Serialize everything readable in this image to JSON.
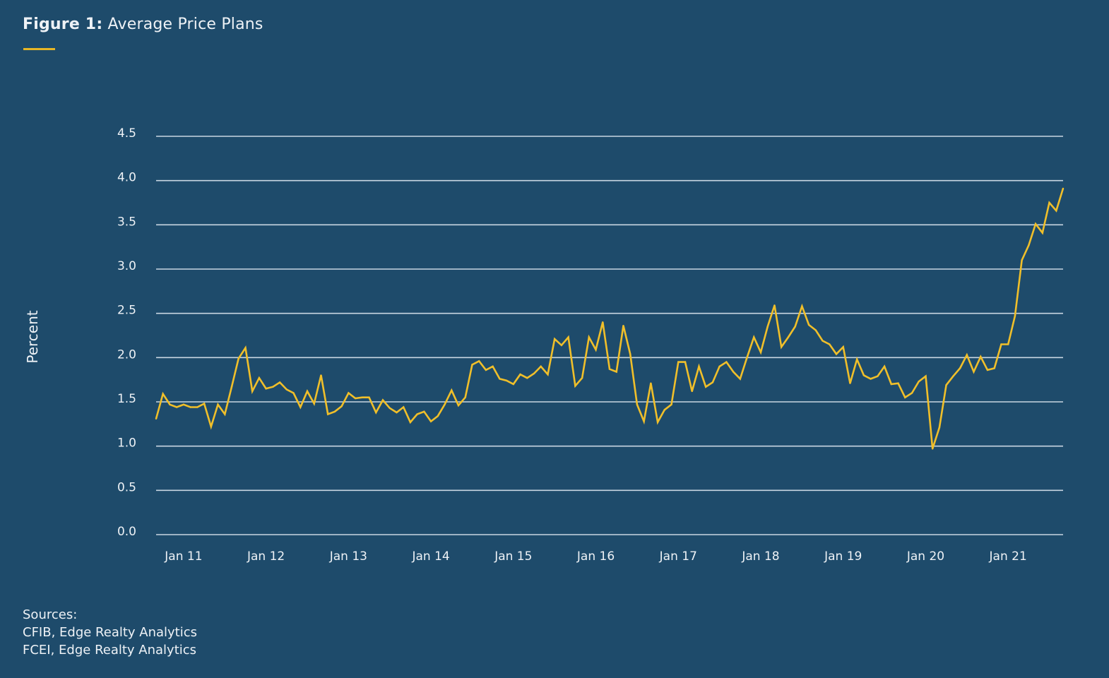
{
  "header": {
    "title_prefix": "Figure 1:",
    "title": "Average Price Plans"
  },
  "sources": {
    "label": "Sources:",
    "lines": [
      "CFIB, Edge Realty Analytics",
      "FCEI, Edge Realty Analytics"
    ]
  },
  "colors": {
    "background": "#1e4b6b",
    "line": "#f0bf2a",
    "grid": "#c8d6e2",
    "accent_rule": "#e6b626"
  },
  "chart_data": {
    "type": "line",
    "title": "Figure 1: Average Price Plans",
    "xlabel": "",
    "ylabel": "Percent",
    "ylim": [
      0,
      4.5
    ],
    "yticks": [
      "0.0",
      "0.5",
      "1.0",
      "1.5",
      "2.0",
      "2.5",
      "3.0",
      "3.5",
      "4.0",
      "4.5"
    ],
    "xtick_labels": [
      "Jan 11",
      "Jan 12",
      "Jan 13",
      "Jan 14",
      "Jan 15",
      "Jan 16",
      "Jan 17",
      "Jan 18",
      "Jan 19",
      "Jan 20",
      "Jan 21"
    ],
    "xtick_dates": [
      "2011-01",
      "2012-01",
      "2013-01",
      "2014-01",
      "2015-01",
      "2016-01",
      "2017-01",
      "2018-01",
      "2019-01",
      "2020-01",
      "2021-01"
    ],
    "grid": "horizontal",
    "legend": "none",
    "x": [
      "2010-09",
      "2010-10",
      "2010-11",
      "2010-12",
      "2011-01",
      "2011-02",
      "2011-03",
      "2011-04",
      "2011-05",
      "2011-06",
      "2011-07",
      "2011-08",
      "2011-09",
      "2011-10",
      "2011-11",
      "2011-12",
      "2012-01",
      "2012-02",
      "2012-03",
      "2012-04",
      "2012-05",
      "2012-06",
      "2012-07",
      "2012-08",
      "2012-09",
      "2012-10",
      "2012-11",
      "2012-12",
      "2013-01",
      "2013-02",
      "2013-03",
      "2013-04",
      "2013-05",
      "2013-06",
      "2013-07",
      "2013-08",
      "2013-09",
      "2013-10",
      "2013-11",
      "2013-12",
      "2014-01",
      "2014-02",
      "2014-03",
      "2014-04",
      "2014-05",
      "2014-06",
      "2014-07",
      "2014-08",
      "2014-09",
      "2014-10",
      "2014-11",
      "2014-12",
      "2015-01",
      "2015-02",
      "2015-03",
      "2015-04",
      "2015-05",
      "2015-06",
      "2015-07",
      "2015-08",
      "2015-09",
      "2015-10",
      "2015-11",
      "2015-12",
      "2016-01",
      "2016-02",
      "2016-03",
      "2016-04",
      "2016-05",
      "2016-06",
      "2016-07",
      "2016-08",
      "2016-09",
      "2016-10",
      "2016-11",
      "2016-12",
      "2017-01",
      "2017-02",
      "2017-03",
      "2017-04",
      "2017-05",
      "2017-06",
      "2017-07",
      "2017-08",
      "2017-09",
      "2017-10",
      "2017-11",
      "2017-12",
      "2018-01",
      "2018-02",
      "2018-03",
      "2018-04",
      "2018-05",
      "2018-06",
      "2018-07",
      "2018-08",
      "2018-09",
      "2018-10",
      "2018-11",
      "2018-12",
      "2019-01",
      "2019-02",
      "2019-03",
      "2019-04",
      "2019-05",
      "2019-06",
      "2019-07",
      "2019-08",
      "2019-09",
      "2019-10",
      "2019-11",
      "2019-12",
      "2020-01",
      "2020-02",
      "2020-03",
      "2020-04",
      "2020-05",
      "2020-06",
      "2020-07",
      "2020-08",
      "2020-09",
      "2020-10",
      "2020-11",
      "2020-12",
      "2021-01",
      "2021-02",
      "2021-03",
      "2021-04",
      "2021-05",
      "2021-06",
      "2021-07",
      "2021-08",
      "2021-09"
    ],
    "series": [
      {
        "values": [
          1.31,
          1.59,
          1.47,
          1.44,
          1.47,
          1.44,
          1.44,
          1.48,
          1.22,
          1.47,
          1.36,
          1.67,
          1.99,
          2.11,
          1.62,
          1.77,
          1.65,
          1.67,
          1.72,
          1.64,
          1.6,
          1.44,
          1.62,
          1.48,
          1.8,
          1.36,
          1.39,
          1.45,
          1.6,
          1.54,
          1.55,
          1.55,
          1.38,
          1.52,
          1.43,
          1.38,
          1.44,
          1.27,
          1.36,
          1.39,
          1.28,
          1.34,
          1.47,
          1.63,
          1.46,
          1.55,
          1.92,
          1.96,
          1.86,
          1.9,
          1.76,
          1.74,
          1.7,
          1.81,
          1.77,
          1.82,
          1.9,
          1.81,
          2.21,
          2.14,
          2.23,
          1.68,
          1.77,
          2.23,
          2.09,
          2.4,
          1.87,
          1.84,
          2.36,
          2.04,
          1.47,
          1.28,
          1.71,
          1.27,
          1.41,
          1.47,
          1.95,
          1.95,
          1.62,
          1.9,
          1.67,
          1.72,
          1.9,
          1.95,
          1.84,
          1.76,
          2.0,
          2.23,
          2.06,
          2.35,
          2.59,
          2.12,
          2.23,
          2.35,
          2.58,
          2.37,
          2.31,
          2.19,
          2.15,
          2.04,
          2.12,
          1.71,
          1.98,
          1.8,
          1.76,
          1.79,
          1.9,
          1.7,
          1.71,
          1.55,
          1.6,
          1.73,
          1.79,
          0.97,
          1.21,
          1.69,
          1.79,
          1.88,
          2.03,
          1.84,
          2.01,
          1.86,
          1.88,
          2.15,
          2.15,
          2.47,
          3.1,
          3.27,
          3.51,
          3.41,
          3.75,
          3.66,
          3.91
        ]
      }
    ]
  }
}
